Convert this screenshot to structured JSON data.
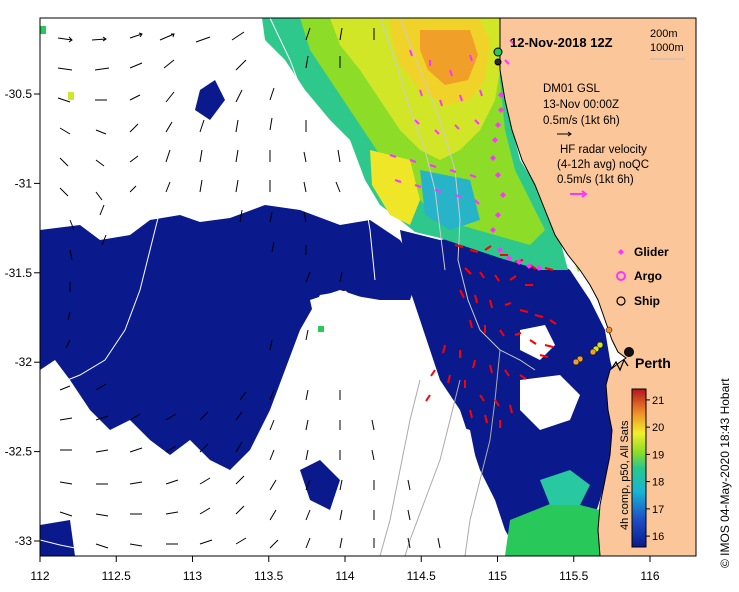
{
  "title": "12-Nov-2018 12Z",
  "isobath_legend": [
    "200m",
    "1000m"
  ],
  "model_legend": {
    "source": "DM01 GSL",
    "time": "13-Nov 00:00Z",
    "scale": "0.5m/s (1kt 6h)"
  },
  "radar_legend": {
    "line1": "HF radar velocity",
    "line2": "(4-12h avg) noQC",
    "scale": "0.5m/s (1kt 6h)"
  },
  "markers": [
    {
      "label": "Glider",
      "symbol": "diamond",
      "color": "#ff33ff"
    },
    {
      "label": "Argo",
      "symbol": "circle",
      "color": "#ff33ff"
    },
    {
      "label": "Ship",
      "symbol": "circle",
      "color": "#000000"
    }
  ],
  "city": "Perth",
  "colorbar": {
    "label": "4h comp, p50, All Sats",
    "ticks": [
      "16",
      "17",
      "18",
      "19",
      "20",
      "21"
    ],
    "min": 15.6,
    "max": 21.4
  },
  "x_axis_ticks": [
    "112",
    "112.5",
    "113",
    "113.5",
    "114",
    "114.5",
    "115",
    "115.5",
    "116"
  ],
  "y_axis_ticks": [
    "-30.5",
    "-31",
    "-31.5",
    "-32",
    "-32.5",
    "-33"
  ],
  "copyright": "© IMOS 04-May-2020 18:43 Hobart",
  "colors": {
    "land": "#fbc69a",
    "cold": "#0a1a8c",
    "model_arrow": "#000000",
    "radar_arrow": "#ff0000",
    "glider_track": "#ff33ff"
  }
}
